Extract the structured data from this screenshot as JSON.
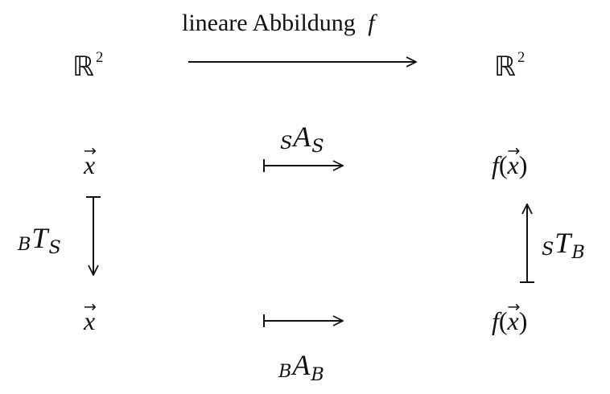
{
  "diagram": {
    "top_arrow_label": "lineare Abbildung",
    "top_arrow_symbol": "f",
    "space_left": "ℝ",
    "space_right": "ℝ",
    "space_exponent": "2",
    "vec_x": "x",
    "func": "f",
    "paren_open": "(",
    "paren_close": ")",
    "mat_SS": {
      "pre": "S",
      "main": "A",
      "sub": "S"
    },
    "mat_BB": {
      "pre": "B",
      "main": "A",
      "sub": "B"
    },
    "trans_BS": {
      "pre": "B",
      "main": "T",
      "sub": "S"
    },
    "trans_SB": {
      "pre": "S",
      "main": "T",
      "sub": "B"
    }
  },
  "colors": {
    "ink": "#111111",
    "background": "#ffffff"
  }
}
